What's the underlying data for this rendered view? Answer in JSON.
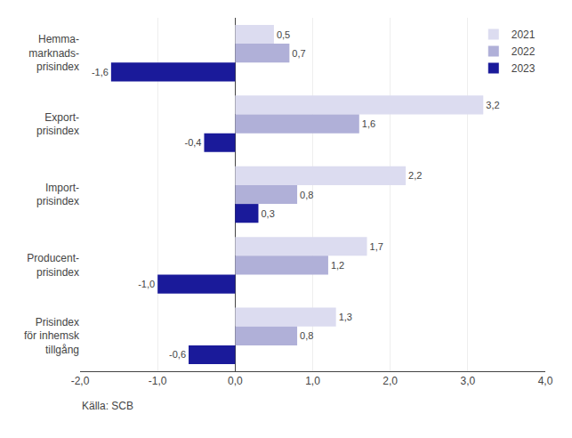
{
  "chart_data": {
    "type": "bar",
    "orientation": "horizontal",
    "categories": [
      "Hemma-\nmarknads-\nprisindex",
      "Export-\nprisindex",
      "Import-\nprisindex",
      "Producent-\nprisindex",
      "Prisindex\nför inhemsk\ntillgång"
    ],
    "series": [
      {
        "name": "2021",
        "color": "#dcdcf0",
        "values": [
          0.5,
          3.2,
          2.2,
          1.7,
          1.3
        ],
        "value_labels": [
          "0,5",
          "3,2",
          "2,2",
          "1,7",
          "1,3"
        ]
      },
      {
        "name": "2022",
        "color": "#b0b0d8",
        "values": [
          0.7,
          1.6,
          0.8,
          1.2,
          0.8
        ],
        "value_labels": [
          "0,7",
          "1,6",
          "0,8",
          "1,2",
          "0,8"
        ]
      },
      {
        "name": "2023",
        "color": "#1a1a9a",
        "values": [
          -1.6,
          -0.4,
          0.3,
          -1.0,
          -0.6
        ],
        "value_labels": [
          "-1,6",
          "-0,4",
          "0,3",
          "-1,0",
          "-0,6"
        ]
      }
    ],
    "xlim": [
      -2.0,
      4.0
    ],
    "xticks": [
      {
        "value": -2.0,
        "label": "-2,0"
      },
      {
        "value": -1.0,
        "label": "-1,0"
      },
      {
        "value": 0.0,
        "label": "0,0"
      },
      {
        "value": 1.0,
        "label": "1,0"
      },
      {
        "value": 2.0,
        "label": "2,0"
      },
      {
        "value": 3.0,
        "label": "3,0"
      },
      {
        "value": 4.0,
        "label": "4,0"
      }
    ],
    "grid": true,
    "legend": "upper right",
    "data_labels": true,
    "annotations": [
      "Källa: SCB"
    ]
  }
}
